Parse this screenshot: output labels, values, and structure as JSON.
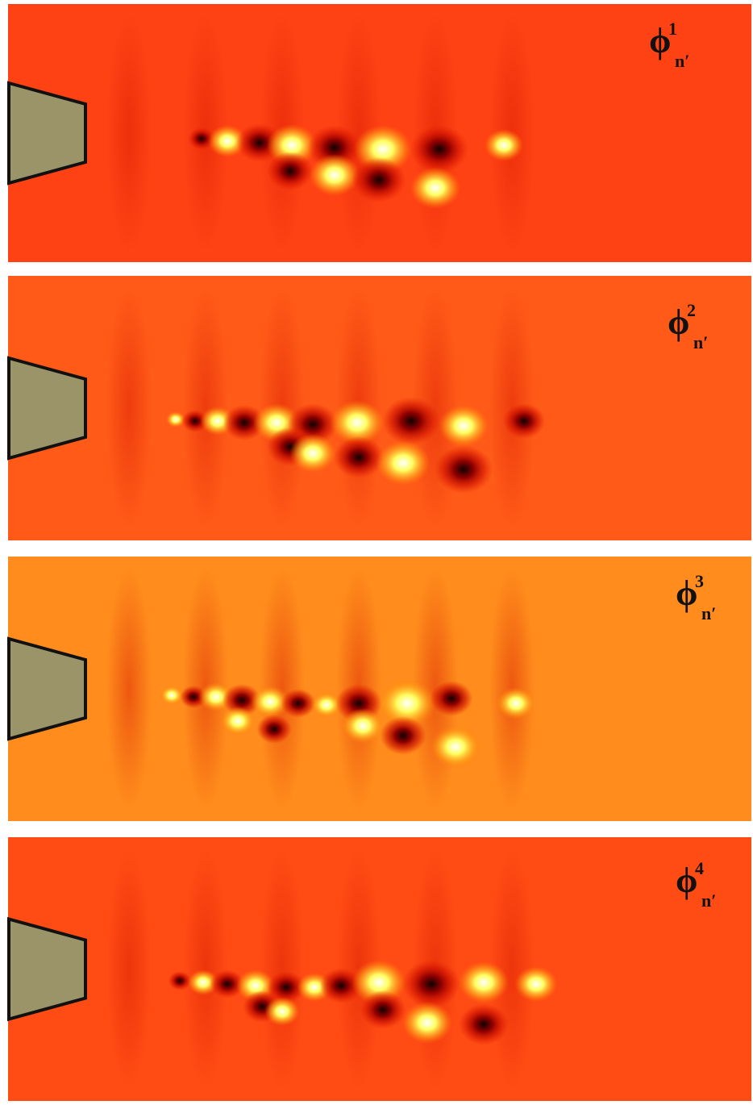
{
  "panels": [
    {
      "symbol": "ϕ",
      "superscript": "1",
      "subscript": "n′"
    },
    {
      "symbol": "ϕ",
      "superscript": "2",
      "subscript": "n′"
    },
    {
      "symbol": "ϕ",
      "superscript": "3",
      "subscript": "n′"
    },
    {
      "symbol": "ϕ",
      "superscript": "4",
      "subscript": "n′"
    }
  ]
}
